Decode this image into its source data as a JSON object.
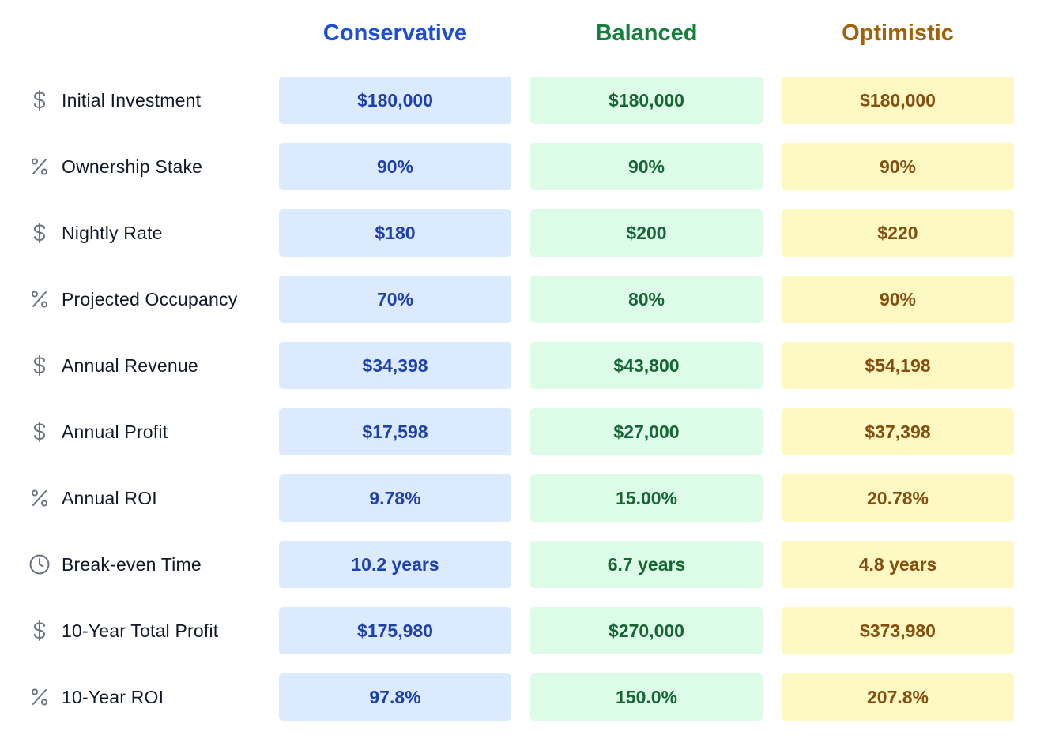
{
  "columns": {
    "conservative": "Conservative",
    "balanced": "Balanced",
    "optimistic": "Optimistic"
  },
  "colors": {
    "conservative_text": "#1d4ed8",
    "conservative_bg": "#dbeafe",
    "balanced_text": "#15803d",
    "balanced_bg": "#dcfce7",
    "optimistic_text": "#a16207",
    "optimistic_bg": "#fef9c3"
  },
  "rows": [
    {
      "icon": "dollar-icon",
      "label": "Initial Investment",
      "conservative": "$180,000",
      "balanced": "$180,000",
      "optimistic": "$180,000"
    },
    {
      "icon": "percent-icon",
      "label": "Ownership Stake",
      "conservative": "90%",
      "balanced": "90%",
      "optimistic": "90%"
    },
    {
      "icon": "dollar-icon",
      "label": "Nightly Rate",
      "conservative": "$180",
      "balanced": "$200",
      "optimistic": "$220"
    },
    {
      "icon": "percent-icon",
      "label": "Projected Occupancy",
      "conservative": "70%",
      "balanced": "80%",
      "optimistic": "90%"
    },
    {
      "icon": "dollar-icon",
      "label": "Annual Revenue",
      "conservative": "$34,398",
      "balanced": "$43,800",
      "optimistic": "$54,198"
    },
    {
      "icon": "dollar-icon",
      "label": "Annual Profit",
      "conservative": "$17,598",
      "balanced": "$27,000",
      "optimistic": "$37,398"
    },
    {
      "icon": "percent-icon",
      "label": "Annual ROI",
      "conservative": "9.78%",
      "balanced": "15.00%",
      "optimistic": "20.78%"
    },
    {
      "icon": "clock-icon",
      "label": "Break-even Time",
      "conservative": "10.2 years",
      "balanced": "6.7 years",
      "optimistic": "4.8 years"
    },
    {
      "icon": "dollar-icon",
      "label": "10-Year Total Profit",
      "conservative": "$175,980",
      "balanced": "$270,000",
      "optimistic": "$373,980"
    },
    {
      "icon": "percent-icon",
      "label": "10-Year ROI",
      "conservative": "97.8%",
      "balanced": "150.0%",
      "optimistic": "207.8%"
    }
  ]
}
